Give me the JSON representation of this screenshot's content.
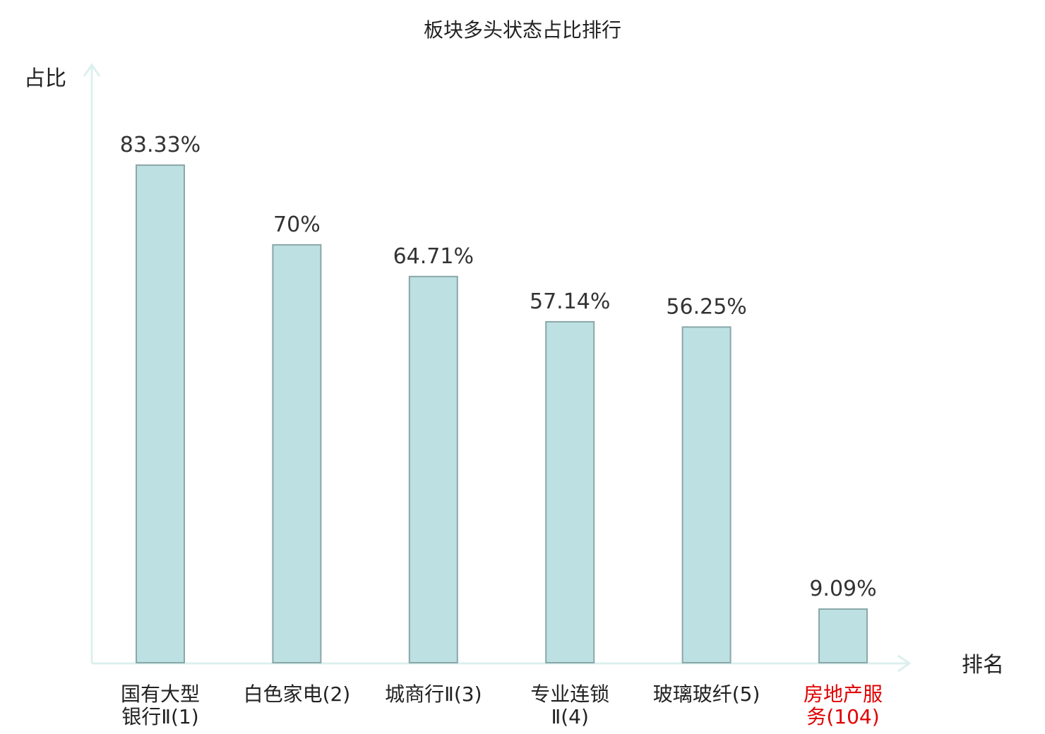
{
  "chart_data": {
    "type": "bar",
    "title": "板块多头状态占比排行",
    "ylabel": "占比",
    "xlabel": "排名",
    "ylim": [
      0,
      100
    ],
    "categories": [
      [
        "国有大型",
        "银行Ⅱ(1)"
      ],
      [
        "白色家电(2)"
      ],
      [
        "城商行Ⅱ(3)"
      ],
      [
        "专业连锁",
        "Ⅱ(4)"
      ],
      [
        "玻璃玻纤(5)"
      ],
      [
        "房地产服",
        "务(104)"
      ]
    ],
    "values": [
      83.33,
      70,
      64.71,
      57.14,
      56.25,
      9.09
    ],
    "value_labels": [
      "83.33%",
      "70%",
      "64.71%",
      "57.14%",
      "56.25%",
      "9.09%"
    ],
    "highlight_index": 5,
    "grid": false,
    "legend": "none"
  },
  "colors": {
    "bar_fill": "#bde0e2",
    "bar_stroke": "#8aa7a9",
    "axis": "#dcf0ee",
    "text": "#222222",
    "value_text": "#333333",
    "highlight": "#e00000"
  }
}
